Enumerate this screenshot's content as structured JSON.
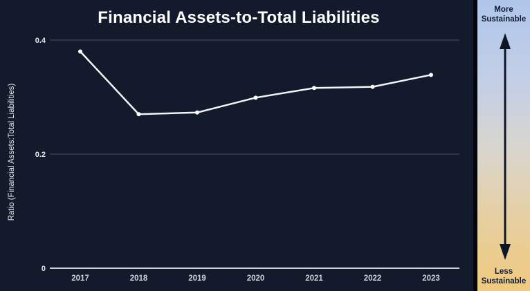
{
  "chart": {
    "title": "Financial Assets-to-Total Liabilities",
    "y_axis_label": "Ratio (Financial Assets:Total Liabilities)"
  },
  "legend": {
    "top_label": "More Sustainable",
    "bottom_label": "Less Sustainable"
  },
  "colors": {
    "background": "#121a2b",
    "line": "#f4f5f7",
    "marker": "#ffffff",
    "gridline": "#4a5261",
    "axis_line": "#e9ebee",
    "y_tick_text": "#e8eaee",
    "x_tick_text": "#ccd1d9",
    "panel_gradient_top": "#b0c6eb",
    "panel_gradient_bottom": "#f0ca7e",
    "panel_text": "#0e1830",
    "arrow": "#0d1526"
  },
  "chart_data": {
    "type": "line",
    "categories": [
      "2017",
      "2018",
      "2019",
      "2020",
      "2021",
      "2022",
      "2023"
    ],
    "values": [
      0.38,
      0.27,
      0.273,
      0.299,
      0.316,
      0.318,
      0.339
    ],
    "title": "Financial Assets-to-Total Liabilities",
    "xlabel": "",
    "ylabel": "Ratio (Financial Assets:Total Liabilities)",
    "ylim": [
      0,
      0.45
    ],
    "yticks": [
      0,
      0.2,
      0.4
    ],
    "grid": true,
    "legend_position": "none",
    "marker": "circle"
  }
}
